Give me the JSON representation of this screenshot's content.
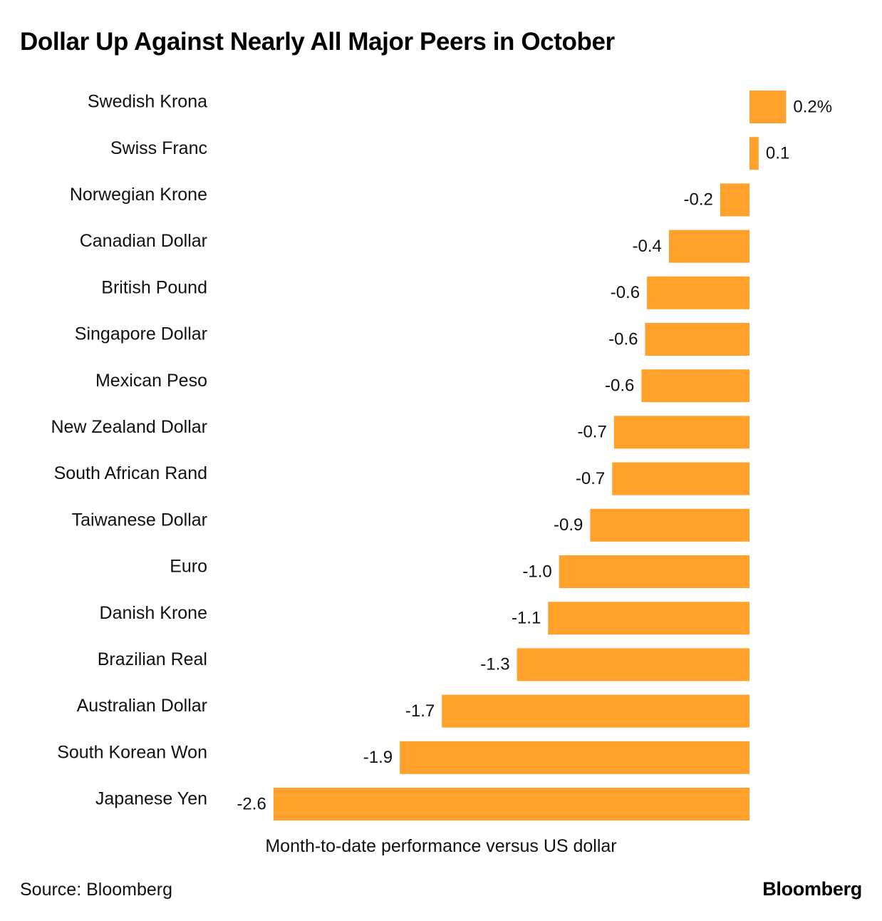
{
  "title": "Dollar Up Against Nearly All Major Peers in October",
  "source": "Source: Bloomberg",
  "brand": "Bloomberg",
  "colors": {
    "bar": "#FFA12B"
  },
  "chart_data": {
    "type": "bar",
    "orientation": "horizontal",
    "title": "Dollar Up Against Nearly All Major Peers in October",
    "xlabel": "Month-to-date performance versus US dollar",
    "ylabel": "",
    "xlim": [
      -2.6,
      0.2
    ],
    "grid": false,
    "categories": [
      "Swedish Krona",
      "Swiss Franc",
      "Norwegian Krone",
      "Canadian Dollar",
      "British Pound",
      "Singapore Dollar",
      "Mexican Peso",
      "New Zealand Dollar",
      "South African Rand",
      "Taiwanese Dollar",
      "Euro",
      "Danish Krone",
      "Brazilian Real",
      "Australian Dollar",
      "South Korean Won",
      "Japanese Yen"
    ],
    "values": [
      0.2,
      0.05,
      -0.16,
      -0.44,
      -0.56,
      -0.57,
      -0.59,
      -0.74,
      -0.75,
      -0.87,
      -1.04,
      -1.1,
      -1.27,
      -1.68,
      -1.91,
      -2.6
    ],
    "data_labels": [
      "0.2%",
      "0.1",
      "-0.2",
      "-0.4",
      "-0.6",
      "-0.6",
      "-0.6",
      "-0.7",
      "-0.7",
      "-0.9",
      "-1.0",
      "-1.1",
      "-1.3",
      "-1.7",
      "-1.9",
      "-2.6"
    ]
  }
}
